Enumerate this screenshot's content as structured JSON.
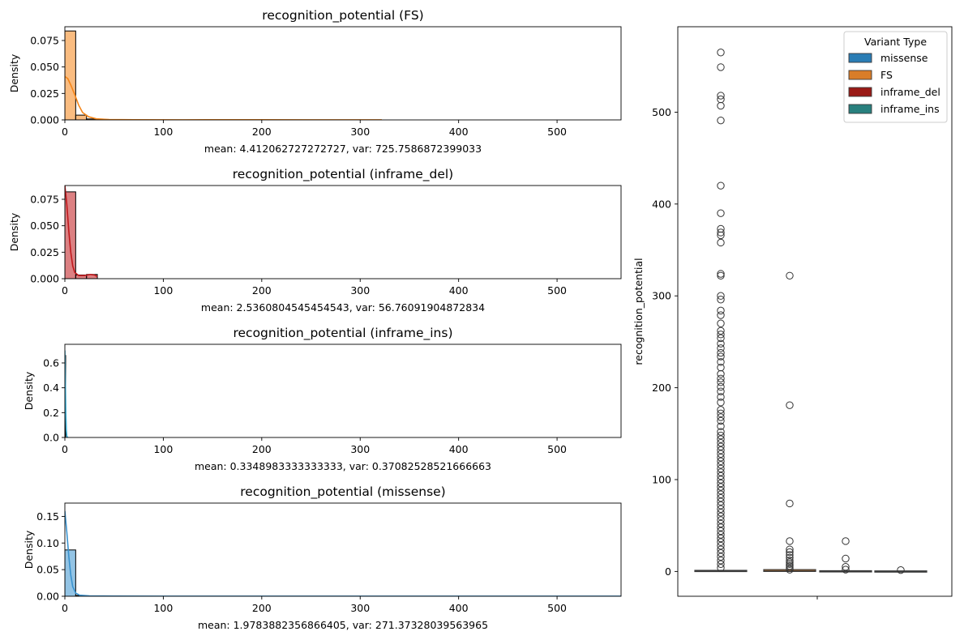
{
  "chart_data": [
    {
      "type": "histogram",
      "variant": "FS",
      "title": "recognition_potential (FS)",
      "ylabel": "Density",
      "xlabel": "mean: 4.412062727272727, var: 725.7586872399033",
      "xlim": [
        0,
        565
      ],
      "ylim": [
        0,
        0.088
      ],
      "xticks": [
        0,
        100,
        200,
        300,
        400,
        500
      ],
      "yticks": [
        0.0,
        0.025,
        0.05,
        0.075
      ],
      "ytick_labels": [
        "0.000",
        "0.025",
        "0.050",
        "0.075"
      ],
      "color": "#f58518",
      "bins": [
        {
          "x0": 0,
          "x1": 11,
          "density": 0.084
        },
        {
          "x0": 11,
          "x1": 22,
          "density": 0.0045
        },
        {
          "x0": 22,
          "x1": 33,
          "density": 0.0009
        },
        {
          "x0": 33,
          "x1": 44,
          "density": 0.0003
        }
      ],
      "kde": [
        [
          0,
          0.041
        ],
        [
          3,
          0.039
        ],
        [
          6,
          0.033
        ],
        [
          10,
          0.024
        ],
        [
          14,
          0.014
        ],
        [
          18,
          0.007
        ],
        [
          24,
          0.003
        ],
        [
          32,
          0.001
        ],
        [
          45,
          0.0003
        ],
        [
          70,
          0.0002
        ],
        [
          120,
          0.0001
        ],
        [
          180,
          0.0002
        ],
        [
          200,
          0.0002
        ],
        [
          250,
          0.0001
        ],
        [
          300,
          0.0001
        ],
        [
          322,
          0.0001
        ]
      ]
    },
    {
      "type": "histogram",
      "variant": "inframe_del",
      "title": "recognition_potential (inframe_del)",
      "ylabel": "Density",
      "xlabel": "mean: 2.5360804545454543, var: 56.76091904872834",
      "xlim": [
        0,
        565
      ],
      "ylim": [
        0,
        0.088
      ],
      "xticks": [
        0,
        100,
        200,
        300,
        400,
        500
      ],
      "yticks": [
        0.0,
        0.025,
        0.05,
        0.075
      ],
      "ytick_labels": [
        "0.000",
        "0.025",
        "0.050",
        "0.075"
      ],
      "color": "#c0181c",
      "bins": [
        {
          "x0": 0,
          "x1": 11,
          "density": 0.082
        },
        {
          "x0": 11,
          "x1": 22,
          "density": 0.0035
        },
        {
          "x0": 22,
          "x1": 33,
          "density": 0.004
        }
      ],
      "kde": [
        [
          0,
          0.088
        ],
        [
          2,
          0.07
        ],
        [
          4,
          0.045
        ],
        [
          6,
          0.025
        ],
        [
          8,
          0.012
        ],
        [
          10,
          0.006
        ],
        [
          14,
          0.003
        ],
        [
          20,
          0.003
        ],
        [
          26,
          0.004
        ],
        [
          30,
          0.0035
        ],
        [
          33,
          0.002
        ]
      ]
    },
    {
      "type": "histogram",
      "variant": "inframe_ins",
      "title": "recognition_potential (inframe_ins)",
      "ylabel": "Density",
      "xlabel": "mean: 0.3348983333333333, var: 0.37082528521666663",
      "xlim": [
        0,
        565
      ],
      "ylim": [
        0,
        0.75
      ],
      "xticks": [
        0,
        100,
        200,
        300,
        400,
        500
      ],
      "yticks": [
        0.0,
        0.2,
        0.4,
        0.6
      ],
      "ytick_labels": [
        "0.0",
        "0.2",
        "0.4",
        "0.6"
      ],
      "color": "#3db0d6",
      "bins": [
        {
          "x0": 0,
          "x1": 0.8,
          "density": 0.66
        }
      ],
      "kde": [
        [
          0,
          0.7
        ],
        [
          0.5,
          0.45
        ],
        [
          1,
          0.2
        ],
        [
          1.5,
          0.06
        ],
        [
          2,
          0.01
        ],
        [
          3,
          0
        ]
      ]
    },
    {
      "type": "histogram",
      "variant": "missense",
      "title": "recognition_potential (missense)",
      "ylabel": "Density",
      "xlabel": "mean: 1.9783882356866405, var: 271.37328039563965",
      "xlim": [
        0,
        565
      ],
      "ylim": [
        0,
        0.175
      ],
      "xticks": [
        0,
        100,
        200,
        300,
        400,
        500
      ],
      "yticks": [
        0.0,
        0.05,
        0.1,
        0.15
      ],
      "ytick_labels": [
        "0.00",
        "0.05",
        "0.10",
        "0.15"
      ],
      "color": "#3a93cf",
      "bins": [
        {
          "x0": 0,
          "x1": 11,
          "density": 0.087
        },
        {
          "x0": 11,
          "x1": 22,
          "density": 0.0015
        }
      ],
      "kde": [
        [
          0,
          0.16
        ],
        [
          2,
          0.12
        ],
        [
          4,
          0.075
        ],
        [
          6,
          0.04
        ],
        [
          8,
          0.018
        ],
        [
          11,
          0.006
        ],
        [
          15,
          0.002
        ],
        [
          25,
          0.0007
        ],
        [
          50,
          0.0003
        ],
        [
          100,
          0.0002
        ],
        [
          200,
          0.0001
        ],
        [
          565,
          0.0001
        ]
      ]
    },
    {
      "type": "boxplot",
      "ylabel": "recognition_potential",
      "ylim": [
        -27,
        593
      ],
      "yticks": [
        0,
        100,
        200,
        300,
        400,
        500
      ],
      "legend": {
        "title": "Variant Type",
        "position": "top-right",
        "entries": [
          {
            "label": "missense",
            "color": "#2a7db5"
          },
          {
            "label": "FS",
            "color": "#d97d28"
          },
          {
            "label": "inframe_del",
            "color": "#9a1a16"
          },
          {
            "label": "inframe_ins",
            "color": "#28807e"
          }
        ]
      },
      "boxes": [
        {
          "group": "missense",
          "q1": 0,
          "median": 0.2,
          "q3": 1.2,
          "outliers": [
            565,
            549,
            518,
            514,
            507,
            491,
            420,
            390,
            373,
            369,
            366,
            358,
            324,
            322,
            300,
            296,
            284,
            279,
            270,
            262,
            258,
            254,
            248,
            243,
            238,
            234,
            228,
            222,
            215,
            210,
            206,
            201,
            196,
            190,
            184,
            176,
            172,
            168,
            164,
            158,
            152,
            148,
            144,
            140,
            136,
            132,
            128,
            124,
            120,
            116,
            112,
            108,
            104,
            100,
            96,
            92,
            88,
            84,
            80,
            76,
            72,
            68,
            64,
            60,
            56,
            52,
            48,
            44,
            40,
            36,
            32,
            28,
            24,
            20,
            16,
            12,
            8,
            4
          ]
        },
        {
          "group": "FS",
          "q1": 0,
          "median": 0.5,
          "q3": 2,
          "outliers": [
            322,
            181,
            74,
            33,
            24,
            21,
            18,
            15,
            12,
            10,
            8,
            6,
            4,
            2
          ]
        },
        {
          "group": "inframe_del",
          "q1": 0,
          "median": 0.1,
          "q3": 0.8,
          "outliers": [
            33,
            14,
            5,
            2
          ]
        },
        {
          "group": "inframe_ins",
          "q1": 0,
          "median": 0.1,
          "q3": 0.6,
          "outliers": [
            1.5
          ]
        }
      ]
    }
  ]
}
